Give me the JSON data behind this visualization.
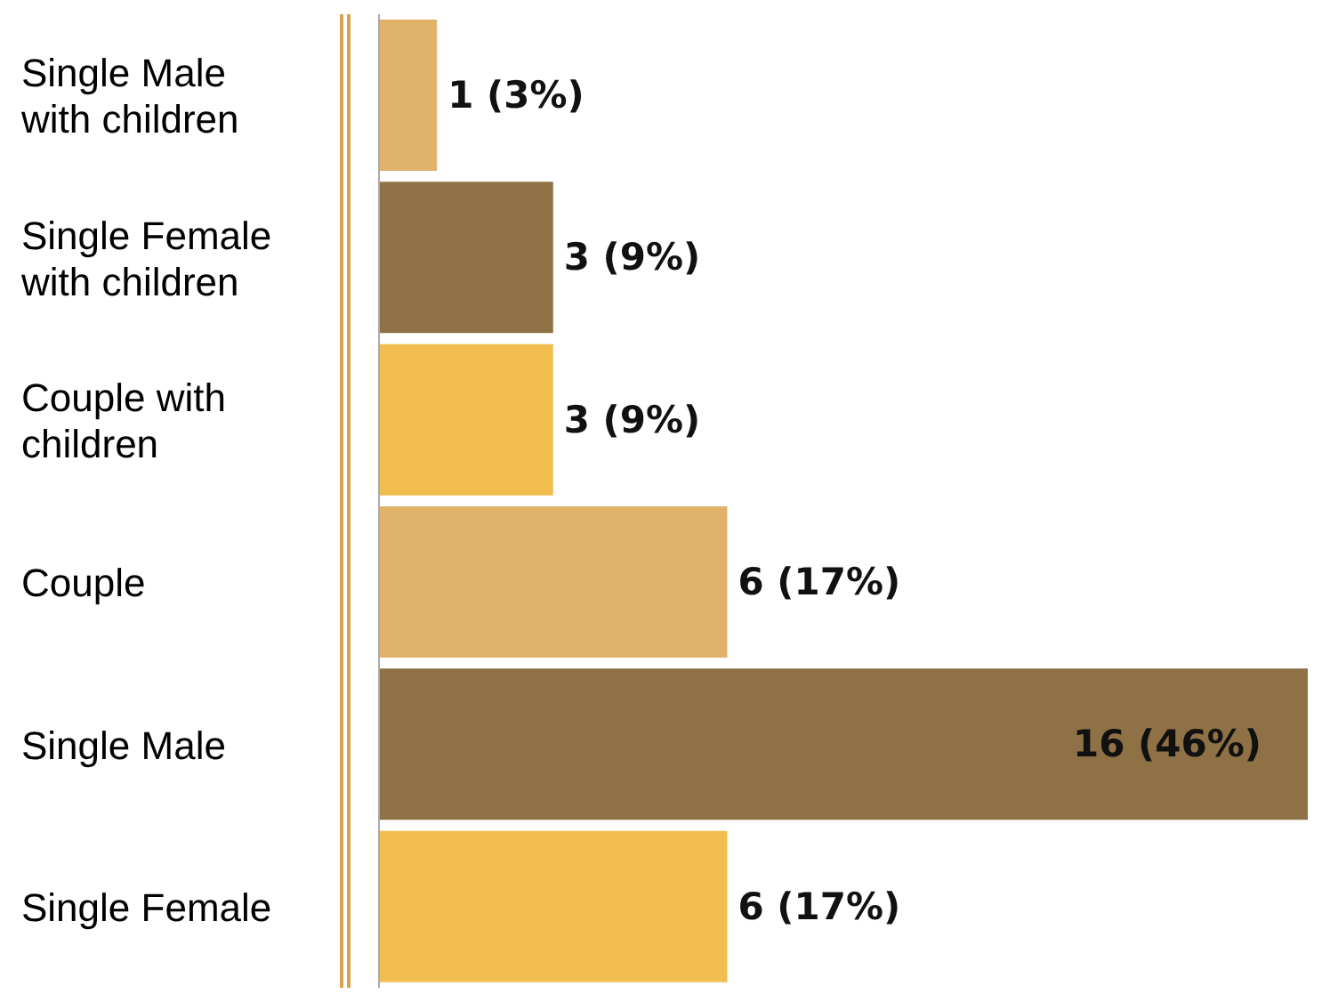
{
  "chart_data": {
    "type": "bar",
    "orientation": "horizontal",
    "categories": [
      "Single Male with children",
      "Single Female with children",
      "Couple with children",
      "Couple",
      "Single Male",
      "Single Female"
    ],
    "values": [
      1,
      3,
      3,
      6,
      16,
      6
    ],
    "value_labels": [
      "1 (3%)",
      "3 (9%)",
      "3 (9%)",
      "6 (17%)",
      "16 (46%)",
      "6 (17%)"
    ],
    "colors": [
      "#e0b26a",
      "#8e7144",
      "#f0bd4e",
      "#e0b26a",
      "#8e7144",
      "#f0bd4e"
    ],
    "tick_labels": "y",
    "grid": false,
    "legend": false
  }
}
